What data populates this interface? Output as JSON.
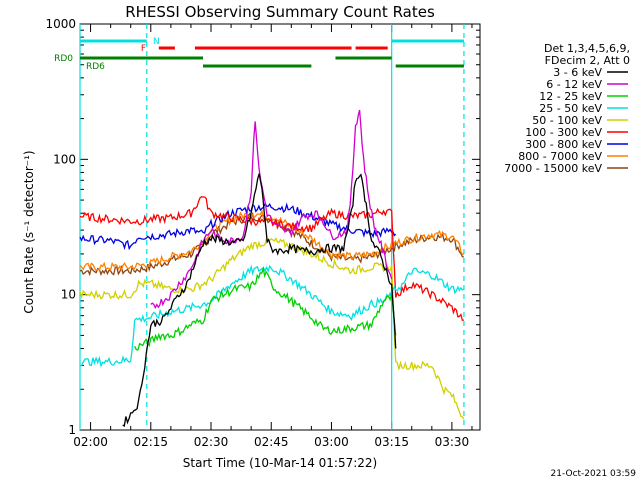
{
  "chart_data": {
    "type": "line",
    "title": "RHESSI Observing Summary Count Rates",
    "xlabel": "Start Time (10-Mar-14 01:57:22)",
    "ylabel": "Count Rate (s⁻¹ detector⁻¹)",
    "y_scale": "log",
    "xlim": [
      "01:57:22",
      "03:37:00"
    ],
    "ylim": [
      1,
      1000
    ],
    "x_ticks": [
      "02:00",
      "02:15",
      "02:30",
      "02:45",
      "03:00",
      "03:15",
      "03:30"
    ],
    "y_ticks": [
      "1",
      "10",
      "100",
      "1000"
    ],
    "legend_header": [
      "Det 1,3,4,5,6,9,",
      "FDecim 2, Att 0"
    ],
    "legend_position": "right",
    "footer": "21-Oct-2021 03:59",
    "series": [
      {
        "name": "3 - 6 keV",
        "color": "#000000",
        "x": [
          "02:08",
          "02:10",
          "02:12",
          "02:15",
          "02:18",
          "02:20",
          "02:22",
          "02:24",
          "02:26",
          "02:28",
          "02:30",
          "02:33",
          "02:36",
          "02:38",
          "02:40",
          "02:42",
          "02:43",
          "02:44",
          "02:45",
          "02:47",
          "02:50",
          "02:53",
          "02:56",
          "02:58",
          "03:00",
          "03:03",
          "03:05",
          "03:06",
          "03:07",
          "03:08",
          "03:09",
          "03:10",
          "03:12",
          "03:13",
          "03:14",
          "03:15",
          "03:16"
        ],
        "y": [
          1.1,
          1.3,
          1.6,
          6,
          6.5,
          8,
          10,
          12,
          17,
          24,
          26,
          25,
          24,
          25,
          40,
          80,
          50,
          25,
          22,
          21,
          22,
          21,
          21,
          22,
          22,
          22,
          40,
          70,
          80,
          60,
          40,
          25,
          20,
          17,
          14,
          12,
          4
        ]
      },
      {
        "name": "6 - 12 keV",
        "color": "#d000d0",
        "x": [
          "02:15",
          "02:18",
          "02:20",
          "02:22",
          "02:24",
          "02:26",
          "02:28",
          "02:30",
          "02:32",
          "02:35",
          "02:38",
          "02:40",
          "02:41",
          "02:42",
          "02:44",
          "02:46",
          "02:48",
          "02:50",
          "02:53",
          "02:56",
          "02:58",
          "03:00",
          "03:02",
          "03:04",
          "03:05",
          "03:06",
          "03:07",
          "03:08",
          "03:09",
          "03:10",
          "03:11",
          "03:12",
          "03:13",
          "03:14",
          "03:15"
        ],
        "y": [
          8,
          9,
          10,
          12,
          14,
          18,
          25,
          30,
          26,
          25,
          27,
          60,
          200,
          80,
          40,
          32,
          30,
          29,
          38,
          40,
          35,
          27,
          28,
          30,
          60,
          180,
          230,
          100,
          60,
          40,
          30,
          25,
          20,
          16,
          13
        ]
      },
      {
        "name": "12 - 25 keV",
        "color": "#00d000",
        "x": [
          "02:11",
          "02:13",
          "02:15",
          "02:17",
          "02:20",
          "02:23",
          "02:25",
          "02:28",
          "02:30",
          "02:33",
          "02:36",
          "02:40",
          "02:43",
          "02:46",
          "02:49",
          "02:52",
          "02:55",
          "02:58",
          "03:01",
          "03:04",
          "03:07",
          "03:10",
          "03:13",
          "03:15",
          "03:16"
        ],
        "y": [
          4,
          4.3,
          4.5,
          5,
          5,
          5.5,
          6,
          6.5,
          9,
          10,
          11,
          11.5,
          15,
          11,
          9.5,
          8,
          6.8,
          5.6,
          5.4,
          5.6,
          5.8,
          6,
          9,
          9.5,
          5
        ]
      },
      {
        "name": "25 - 50 keV",
        "color": "#00e0e0",
        "x": [
          "01:57:22",
          "02:05",
          "02:10",
          "02:11",
          "02:15",
          "02:20",
          "02:25",
          "02:28",
          "02:30",
          "02:35",
          "02:40",
          "02:45",
          "02:50",
          "02:55",
          "03:00",
          "03:05",
          "03:10",
          "03:13",
          "03:15",
          "03:16",
          "03:18",
          "03:20",
          "03:25",
          "03:30",
          "03:33"
        ],
        "y": [
          3.2,
          3.2,
          3.3,
          6.5,
          6.8,
          7.5,
          8,
          8.5,
          9,
          12,
          15,
          16,
          13,
          10,
          7.5,
          7,
          8.5,
          9,
          10,
          11,
          12,
          15,
          14,
          11,
          11
        ]
      },
      {
        "name": "50 - 100 keV",
        "color": "#d0d000",
        "x": [
          "01:57:22",
          "02:05",
          "02:10",
          "02:12",
          "02:15",
          "02:20",
          "02:25",
          "02:28",
          "02:30",
          "02:35",
          "02:40",
          "02:45",
          "02:50",
          "02:55",
          "03:00",
          "03:05",
          "03:10",
          "03:13",
          "03:15",
          "03:16",
          "03:20",
          "03:25",
          "03:28",
          "03:30",
          "03:33"
        ],
        "y": [
          10,
          10,
          10,
          12,
          12,
          11,
          11,
          12,
          13,
          18,
          23,
          25,
          23,
          20,
          17,
          15,
          16,
          16,
          16,
          3,
          3,
          3,
          2,
          1.8,
          1.2
        ]
      },
      {
        "name": "100 - 300 keV",
        "color": "#ff0000",
        "x": [
          "01:57:22",
          "02:05",
          "02:10",
          "02:12",
          "02:15",
          "02:20",
          "02:25",
          "02:28",
          "02:30",
          "02:35",
          "02:40",
          "02:45",
          "02:50",
          "02:55",
          "03:00",
          "03:05",
          "03:10",
          "03:13",
          "03:15",
          "03:16",
          "03:20",
          "03:25",
          "03:30",
          "03:33"
        ],
        "y": [
          38,
          36,
          35,
          35,
          36,
          37,
          40,
          55,
          40,
          37,
          35,
          34,
          32,
          31,
          40,
          38,
          39,
          42,
          40,
          10,
          12,
          10,
          8,
          6.5
        ]
      },
      {
        "name": "300 - 800 keV",
        "color": "#0000e0",
        "x": [
          "01:57:22",
          "02:05",
          "02:10",
          "02:12",
          "02:15",
          "02:20",
          "02:25",
          "02:28",
          "02:30",
          "02:35",
          "02:40",
          "02:45",
          "02:50",
          "02:55",
          "03:00",
          "03:05",
          "03:10",
          "03:13",
          "03:15",
          "03:16"
        ],
        "y": [
          26,
          25,
          23,
          27,
          27,
          28,
          30,
          28,
          33,
          40,
          44,
          45,
          43,
          38,
          33,
          30,
          28,
          29,
          30,
          28
        ]
      },
      {
        "name": "800 - 7000 keV",
        "color": "#ff8000",
        "x": [
          "01:57:22",
          "02:05",
          "02:10",
          "02:15",
          "02:20",
          "02:25",
          "02:28",
          "02:30",
          "02:35",
          "02:40",
          "02:45",
          "02:50",
          "02:55",
          "03:00",
          "03:05",
          "03:10",
          "03:13",
          "03:15",
          "03:16",
          "03:20",
          "03:25",
          "03:30",
          "03:33"
        ],
        "y": [
          16,
          16,
          16,
          17,
          19,
          21,
          25,
          30,
          36,
          40,
          38,
          32,
          26,
          20,
          19,
          20,
          22,
          23,
          24,
          26,
          28,
          27,
          20
        ]
      },
      {
        "name": "7000 - 15000 keV",
        "color": "#8b4513",
        "x": [
          "01:57:22",
          "02:05",
          "02:10",
          "02:15",
          "02:20",
          "02:25",
          "02:28",
          "02:30",
          "02:35",
          "02:40",
          "02:45",
          "02:50",
          "02:55",
          "03:00",
          "03:05",
          "03:10",
          "03:13",
          "03:15",
          "03:16",
          "03:20",
          "03:25",
          "03:30",
          "03:33"
        ],
        "y": [
          15,
          15,
          15,
          16,
          18,
          20,
          23,
          28,
          34,
          38,
          36,
          30,
          24,
          19,
          18,
          19,
          21,
          22,
          23,
          25,
          27,
          26,
          19
        ]
      }
    ],
    "flags": [
      {
        "label": "N",
        "color": "#00e0e0",
        "segments": [
          [
            "01:57:22",
            "02:14"
          ],
          [
            "03:15",
            "03:33"
          ]
        ]
      },
      {
        "label": "F",
        "color": "#ff0000",
        "segments": [
          [
            "02:17",
            "02:21"
          ],
          [
            "02:26",
            "03:05"
          ],
          [
            "03:06",
            "03:14"
          ]
        ]
      },
      {
        "label": "RD0",
        "color": "#008000",
        "segments": [
          [
            "01:57:22",
            "02:28"
          ],
          [
            "03:01",
            "03:15"
          ]
        ]
      },
      {
        "label": "RD6",
        "color": "#008000",
        "segments": [
          [
            "02:28",
            "02:55"
          ],
          [
            "03:16",
            "03:33"
          ]
        ]
      }
    ],
    "vertical_lines": {
      "solid": {
        "color": "#00e0e0",
        "times": [
          "01:57:22",
          "03:15"
        ]
      },
      "dashed": {
        "color": "#00e0e0",
        "times": [
          "02:14",
          "03:33"
        ]
      }
    }
  }
}
